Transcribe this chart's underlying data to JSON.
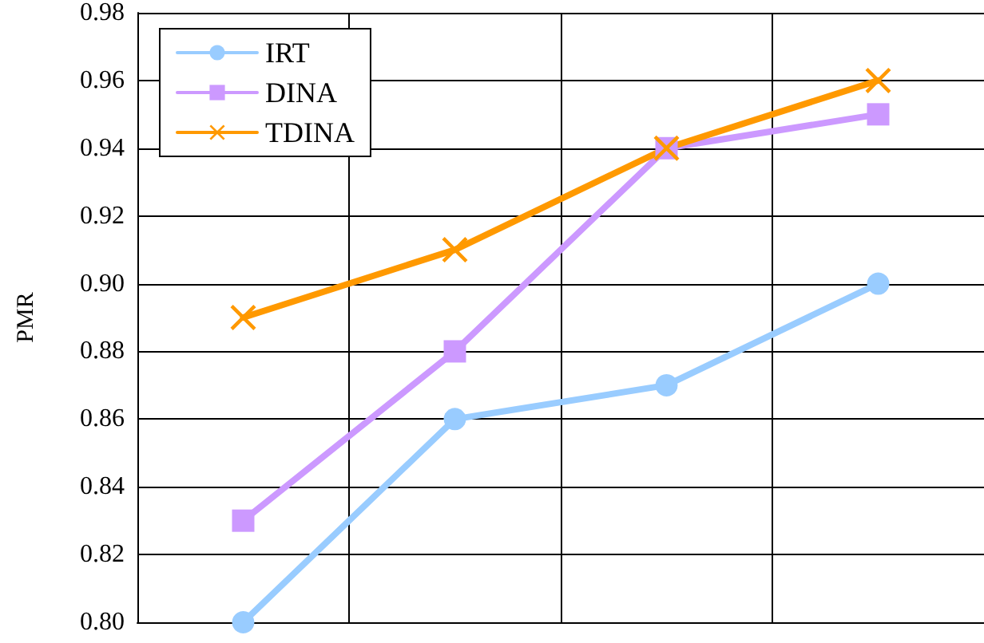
{
  "chart_data": {
    "type": "line",
    "ylabel": "PMR",
    "categories": [
      null,
      null,
      null,
      null
    ],
    "series": [
      {
        "name": "IRT",
        "color": "#99ccff",
        "marker": "circle",
        "values": [
          0.8,
          0.86,
          0.87,
          0.9
        ]
      },
      {
        "name": "DINA",
        "color": "#cc99ff",
        "marker": "square",
        "values": [
          0.83,
          0.88,
          0.94,
          0.95
        ]
      },
      {
        "name": "TDINA",
        "color": "#ff9900",
        "marker": "cross",
        "values": [
          0.89,
          0.91,
          0.94,
          0.96
        ]
      }
    ],
    "ylim": [
      0.8,
      0.98
    ],
    "yticks": [
      {
        "value": 0.8,
        "label": "0.80"
      },
      {
        "value": 0.82,
        "label": "0.82"
      },
      {
        "value": 0.84,
        "label": "0.84"
      },
      {
        "value": 0.86,
        "label": "0.86"
      },
      {
        "value": 0.88,
        "label": "0.88"
      },
      {
        "value": 0.9,
        "label": "0.90"
      },
      {
        "value": 0.92,
        "label": "0.92"
      },
      {
        "value": 0.94,
        "label": "0.94"
      },
      {
        "value": 0.96,
        "label": "0.96"
      },
      {
        "value": 0.98,
        "label": "0.98"
      }
    ],
    "grid": true,
    "legend": "top left"
  }
}
